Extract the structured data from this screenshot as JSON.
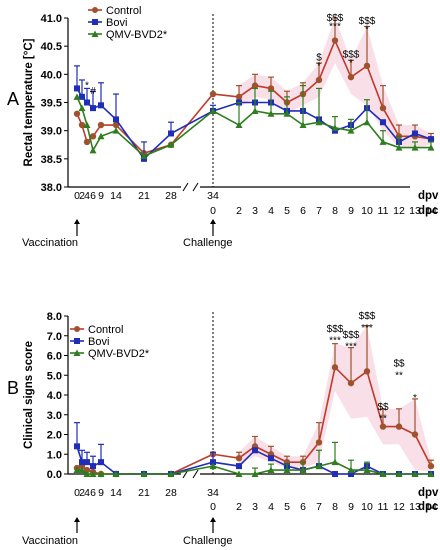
{
  "colors": {
    "control": "#a0522d",
    "bovi": "#1f2db8",
    "qmv": "#2e7d1e",
    "control_line": "#c0392b",
    "band": "#f4c6d6"
  },
  "x_axis": {
    "dpv_ticks": [
      "0",
      "2",
      "4",
      "6",
      "9",
      "14",
      "21",
      "28",
      "34"
    ],
    "dpc_ticks": [
      "0",
      "2",
      "3",
      "4",
      "5",
      "6",
      "7",
      "8",
      "9",
      "10",
      "11",
      "12",
      "13",
      "14"
    ],
    "dpv_label": "dpv",
    "dpc_label": "dpc",
    "vaccination_label": "Vaccination",
    "challenge_label": "Challenge"
  },
  "chart_data": [
    {
      "type": "line",
      "panel_label": "A",
      "ylabel": "Rectal temperature [°C]",
      "ylim": [
        38.0,
        41.0
      ],
      "yticks": [
        "38.0",
        "38.5",
        "39.0",
        "39.5",
        "40.0",
        "40.5",
        "41.0"
      ],
      "x_dpv": [
        0,
        2,
        4,
        6,
        9,
        14,
        21,
        28,
        34
      ],
      "x_dpc": [
        2,
        3,
        4,
        5,
        6,
        7,
        8,
        9,
        10,
        11,
        12,
        13,
        14
      ],
      "series": [
        {
          "name": "Control",
          "dpv": [
            39.3,
            39.1,
            38.8,
            38.9,
            39.1,
            39.1,
            38.6,
            38.75,
            39.65
          ],
          "dpc": [
            39.6,
            39.8,
            39.75,
            39.5,
            39.65,
            39.9,
            40.6,
            39.95,
            40.15,
            39.4,
            38.9,
            38.9,
            38.85
          ],
          "err_dpc": [
            0.2,
            0.2,
            0.2,
            0.2,
            0.2,
            0.3,
            0.4,
            0.3,
            0.7,
            0.4,
            0.2,
            0.2,
            0.1
          ]
        },
        {
          "name": "Bovi",
          "dpv": [
            39.75,
            39.6,
            39.5,
            39.4,
            39.45,
            39.2,
            38.5,
            38.95,
            39.35
          ],
          "dpc": [
            39.5,
            39.5,
            39.5,
            39.35,
            39.35,
            39.2,
            39.0,
            39.1,
            39.4,
            39.15,
            38.8,
            38.95,
            38.85
          ],
          "err_dpv": [
            0.4,
            0.3,
            0.25,
            0.3,
            0.4,
            0.45,
            0.3,
            0.2,
            0.1
          ]
        },
        {
          "name": "QMV-BVD2*",
          "dpv": [
            39.6,
            39.4,
            39.1,
            38.65,
            38.9,
            39.0,
            38.55,
            38.75,
            39.35
          ],
          "dpc": [
            39.1,
            39.35,
            39.3,
            39.3,
            39.1,
            39.15,
            39.05,
            39.0,
            39.15,
            38.8,
            38.7,
            38.7,
            38.7
          ],
          "err_dpc": [
            0.4,
            0.4,
            0.4,
            0.3,
            0.7,
            0.6,
            0.2,
            0.2,
            0.4,
            0.2,
            0.2,
            0.1,
            0.1
          ]
        }
      ],
      "annotations": [
        {
          "text": "*",
          "x_dpv": 4,
          "y": 39.8
        },
        {
          "text": "#",
          "x_dpv": 6,
          "y": 39.7
        },
        {
          "text": "$",
          "x_dpc": 7,
          "y": 40.3
        },
        {
          "text": "*",
          "x_dpc": 7,
          "y": 40.15
        },
        {
          "text": "$$$",
          "x_dpc": 8,
          "y": 41.0
        },
        {
          "text": "***",
          "x_dpc": 8,
          "y": 40.85
        },
        {
          "text": "$$$",
          "x_dpc": 9,
          "y": 40.35
        },
        {
          "text": "*",
          "x_dpc": 9,
          "y": 40.2
        },
        {
          "text": "$$$",
          "x_dpc": 10,
          "y": 40.95
        },
        {
          "text": "*",
          "x_dpc": 10,
          "y": 40.8
        }
      ]
    },
    {
      "type": "line",
      "panel_label": "B",
      "ylabel": "Clinical signs score",
      "ylim": [
        0.0,
        8.0
      ],
      "yticks": [
        "0.0",
        "1.0",
        "2.0",
        "3.0",
        "4.0",
        "5.0",
        "6.0",
        "7.0",
        "8.0"
      ],
      "x_dpv": [
        0,
        2,
        4,
        6,
        9,
        14,
        21,
        28,
        34
      ],
      "x_dpc": [
        2,
        3,
        4,
        5,
        6,
        7,
        8,
        9,
        10,
        11,
        12,
        13,
        14
      ],
      "series": [
        {
          "name": "Control",
          "dpv": [
            0.3,
            0.4,
            0.2,
            0.1,
            0.0,
            0.0,
            0.0,
            0.0,
            1.0
          ],
          "dpc": [
            0.8,
            1.4,
            1.0,
            0.6,
            0.6,
            1.6,
            5.4,
            4.6,
            5.2,
            2.4,
            2.4,
            2.0,
            0.4
          ],
          "err_dpc": [
            0.3,
            0.5,
            0.4,
            0.3,
            0.3,
            1.0,
            1.2,
            1.8,
            2.3,
            0.9,
            0.9,
            1.8,
            0.3
          ]
        },
        {
          "name": "Bovi",
          "dpv": [
            1.4,
            0.6,
            0.6,
            0.4,
            0.6,
            0.0,
            0.0,
            0.0,
            0.6
          ],
          "dpc": [
            0.4,
            1.2,
            0.8,
            0.4,
            0.2,
            0.4,
            0.0,
            0.0,
            0.4,
            0.0,
            0.0,
            0.0,
            0.0
          ],
          "err_dpv": [
            1.2,
            0.6,
            0.5,
            0.5,
            0.9,
            0.0,
            0.0,
            0.0,
            0.5
          ]
        },
        {
          "name": "QMV-BVD2*",
          "dpv": [
            0.2,
            0.2,
            0.0,
            0.0,
            0.0,
            0.0,
            0.0,
            0.0,
            0.4
          ],
          "dpc": [
            0.0,
            0.0,
            0.2,
            0.2,
            0.2,
            0.4,
            0.6,
            0.2,
            0.2,
            0.0,
            0.0,
            0.0,
            0.0
          ],
          "err_dpc": [
            0.0,
            0.3,
            0.3,
            0.3,
            0.4,
            0.8,
            1.0,
            0.5,
            0.4,
            0.0,
            0.0,
            0.0,
            0.0
          ]
        }
      ],
      "annotations": [
        {
          "text": "$$$",
          "x_dpc": 8,
          "y": 7.35
        },
        {
          "text": "***",
          "x_dpc": 8,
          "y": 6.75
        },
        {
          "text": "$$$",
          "x_dpc": 9,
          "y": 7.05
        },
        {
          "text": "***",
          "x_dpc": 9,
          "y": 6.45
        },
        {
          "text": "$$$",
          "x_dpc": 10,
          "y": 8.0
        },
        {
          "text": "***",
          "x_dpc": 10,
          "y": 7.4
        },
        {
          "text": "$$",
          "x_dpc": 11,
          "y": 3.4
        },
        {
          "text": "**",
          "x_dpc": 11,
          "y": 2.8
        },
        {
          "text": "$$",
          "x_dpc": 12,
          "y": 5.6
        },
        {
          "text": "**",
          "x_dpc": 12,
          "y": 5.0
        },
        {
          "text": "*",
          "x_dpc": 13,
          "y": 3.85
        }
      ]
    }
  ]
}
